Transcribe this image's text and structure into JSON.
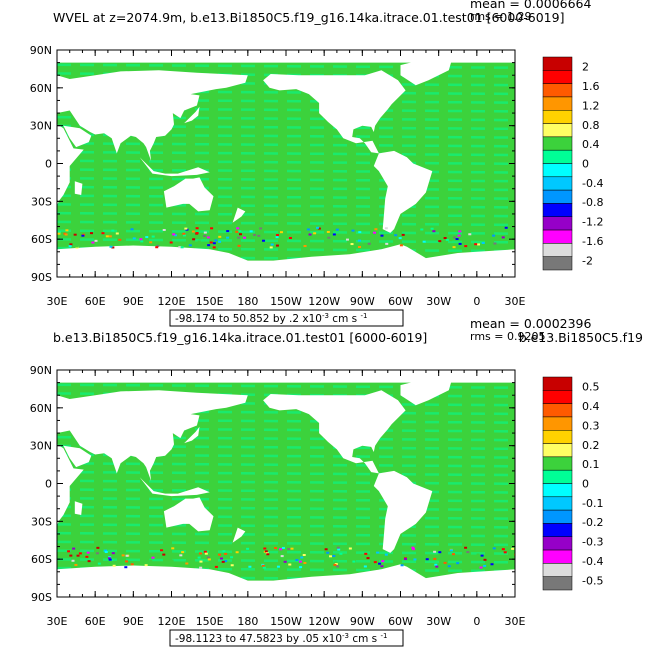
{
  "chart_data": [
    {
      "type": "heatmap",
      "title": "WVEL at z=2074.9m, b.e13.Bi1850C5.f19_g16.14ka.itrace.01.test01 [6000-6019]",
      "stats": [
        "mean = 0.0006664",
        "rms = 1.29"
      ],
      "range_label": "-98.174 to 50.852 by .2 x10",
      "range_exp": "-3",
      "range_unit": "cm s",
      "range_unit_exp": "-1",
      "xticks": [
        "30E",
        "60E",
        "90E",
        "120E",
        "150E",
        "180",
        "150W",
        "120W",
        "90W",
        "60W",
        "30W",
        "0",
        "30E"
      ],
      "yticks": [
        "90N",
        "60N",
        "30N",
        "0",
        "30S",
        "60S",
        "90S"
      ],
      "colorbar_labels": [
        "2",
        "1.6",
        "1.2",
        "0.8",
        "0.4",
        "0",
        "-0.4",
        "-0.8",
        "-1.2",
        "-1.6",
        "-2"
      ],
      "colorbar_levels": [
        2,
        1.6,
        1.2,
        0.8,
        0.4,
        0,
        -0.4,
        -0.8,
        -1.2,
        -1.6,
        -2
      ],
      "palette": [
        "#c80000",
        "#ff0000",
        "#ff5a00",
        "#ff9600",
        "#ffd200",
        "#ffff64",
        "#3cd23c",
        "#00ff96",
        "#00ffff",
        "#00c8ff",
        "#0096ff",
        "#0000ff",
        "#9600c8",
        "#ff00ff",
        "#dcdcdc",
        "#787878"
      ],
      "ocean_base_color": "#3cd23c",
      "ocean_secondary_color": "#00ff96"
    },
    {
      "type": "heatmap",
      "title": "b.e13.Bi1850C5.f19_g16.14ka.itrace.01.test01 [6000-6019]",
      "subtitle_right": "b.e13.Bi1850C5.f19",
      "stats": [
        "mean = 0.0002396",
        "rms = 0.9205"
      ],
      "range_label": "-98.1123 to 47.5823 by .05 x10",
      "range_exp": "-3",
      "range_unit": "cm s",
      "range_unit_exp": "-1",
      "xticks": [
        "30E",
        "60E",
        "90E",
        "120E",
        "150E",
        "180",
        "150W",
        "120W",
        "90W",
        "60W",
        "30W",
        "0",
        "30E"
      ],
      "yticks": [
        "90N",
        "60N",
        "30N",
        "0",
        "30S",
        "60S",
        "90S"
      ],
      "colorbar_labels": [
        "0.5",
        "0.4",
        "0.3",
        "0.2",
        "0.1",
        "0",
        "-0.1",
        "-0.2",
        "-0.3",
        "-0.4",
        "-0.5"
      ],
      "colorbar_levels": [
        0.5,
        0.4,
        0.3,
        0.2,
        0.1,
        0,
        -0.1,
        -0.2,
        -0.3,
        -0.4,
        -0.5
      ],
      "palette": [
        "#c80000",
        "#ff0000",
        "#ff5a00",
        "#ff9600",
        "#ffd200",
        "#ffff64",
        "#3cd23c",
        "#00ff96",
        "#00ffff",
        "#00c8ff",
        "#0096ff",
        "#0000ff",
        "#9600c8",
        "#ff00ff",
        "#dcdcdc",
        "#787878"
      ],
      "ocean_base_color": "#3cd23c",
      "ocean_secondary_color": "#00ff96"
    }
  ]
}
